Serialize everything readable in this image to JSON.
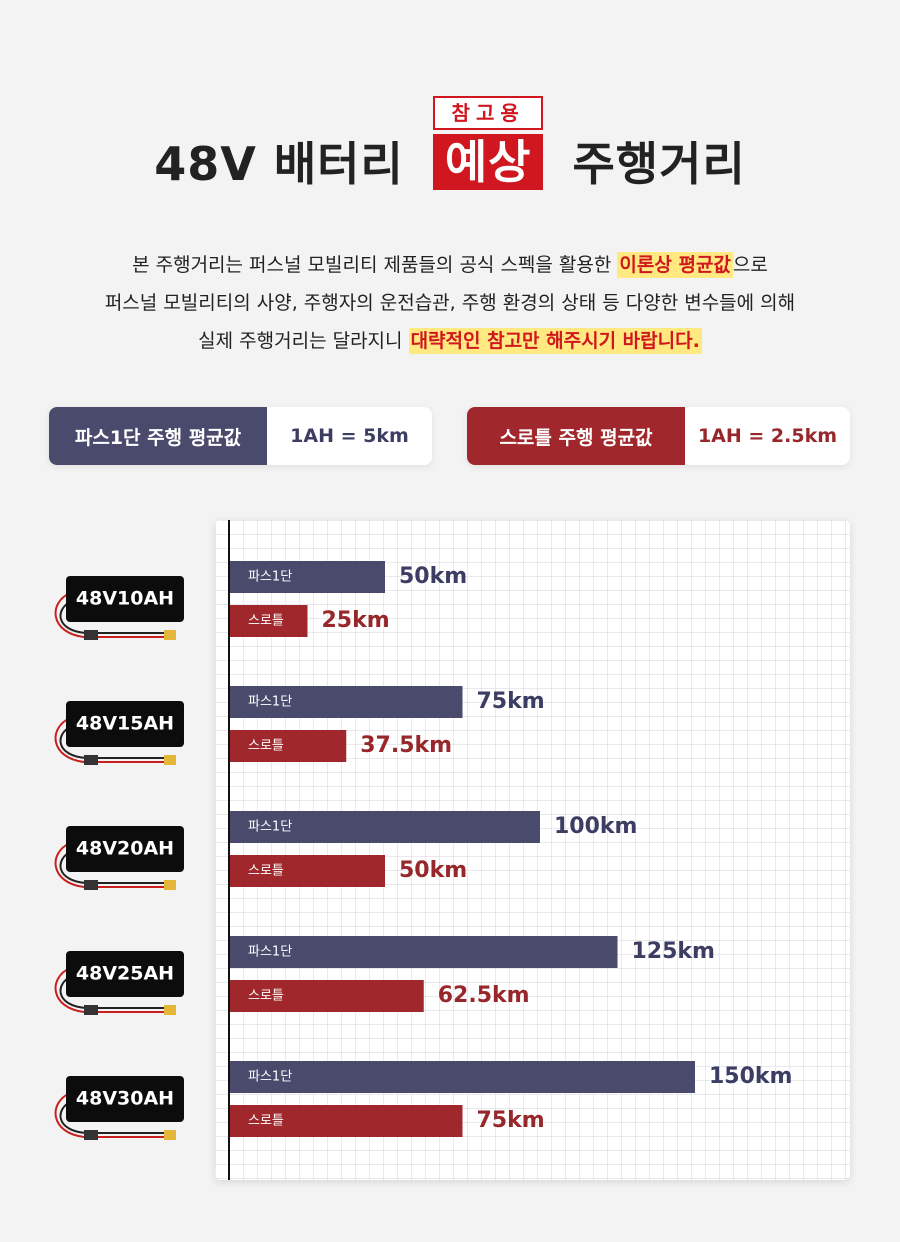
{
  "header": {
    "badge_top": "참고용",
    "title_before": "48V 배터리",
    "title_badge": "예상",
    "title_after": "주행거리"
  },
  "intro": {
    "lines": [
      [
        {
          "text": "본 주행거리는 퍼스널 모빌리티 제품들의 공식 스펙을 활용한 ",
          "highlight": false
        },
        {
          "text": "이론상 평균값",
          "highlight": true
        },
        {
          "text": "으로",
          "highlight": false
        }
      ],
      [
        {
          "text": "퍼스널 모빌리티의 사양, 주행자의 운전습관, 주행 환경의 상태 등 다양한 변수들에 의해",
          "highlight": false
        }
      ],
      [
        {
          "text": "실제 주행거리는 달라지니 ",
          "highlight": false
        },
        {
          "text": "대략적인 참고만 해주시기 바랍니다.",
          "highlight": true
        }
      ]
    ]
  },
  "specs": [
    {
      "label": "파스1단 주행 평균값",
      "value": "1AH = 5km",
      "color": "#4a4b6c",
      "text_color": "#3b3d63"
    },
    {
      "label": "스로틀 주행 평균값",
      "value": "1AH = 2.5km",
      "color": "#a0282c",
      "text_color": "#97272b"
    }
  ],
  "chart_data": {
    "type": "bar",
    "orientation": "horizontal",
    "categories": [
      "48V10AH",
      "48V15AH",
      "48V20AH",
      "48V25AH",
      "48V30AH"
    ],
    "series": [
      {
        "name": "파스1단",
        "color": "#4a4b6c",
        "label_color": "#3b3d63",
        "values": [
          50,
          75,
          100,
          125,
          150
        ],
        "value_labels": [
          "50km",
          "75km",
          "100km",
          "125km",
          "150km"
        ]
      },
      {
        "name": "스로틀",
        "color": "#a0282c",
        "label_color": "#97272b",
        "values": [
          25,
          37.5,
          50,
          62.5,
          75
        ],
        "value_labels": [
          "25km",
          "37.5km",
          "50km",
          "62.5km",
          "75km"
        ]
      }
    ],
    "grid": true
  }
}
